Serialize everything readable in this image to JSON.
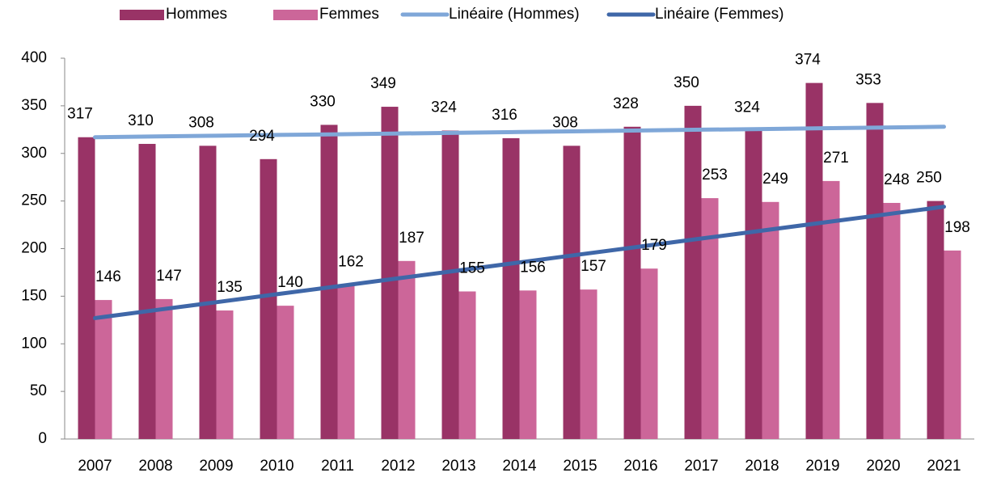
{
  "chart_data": {
    "type": "bar",
    "categories": [
      "2007",
      "2008",
      "2009",
      "2010",
      "2011",
      "2012",
      "2013",
      "2014",
      "2015",
      "2016",
      "2017",
      "2018",
      "2019",
      "2020",
      "2021"
    ],
    "series": [
      {
        "name": "Hommes",
        "type": "bar",
        "color": "#993366",
        "values": [
          317,
          310,
          308,
          294,
          330,
          349,
          324,
          316,
          308,
          328,
          350,
          324,
          374,
          353,
          250
        ]
      },
      {
        "name": "Femmes",
        "type": "bar",
        "color": "#cc6699",
        "values": [
          146,
          147,
          135,
          140,
          162,
          187,
          155,
          156,
          157,
          179,
          253,
          249,
          271,
          248,
          198
        ]
      },
      {
        "name": "Linéaire (Hommes)",
        "type": "line",
        "color": "#7fa7d8",
        "values": [
          317,
          317.8,
          318.6,
          319.4,
          320.1,
          320.9,
          321.7,
          322.5,
          323.3,
          324.1,
          324.9,
          325.6,
          326.4,
          327.2,
          328
        ]
      },
      {
        "name": "Linéaire (Femmes)",
        "type": "line",
        "color": "#3f67a8",
        "values": [
          127,
          135.4,
          143.7,
          152.1,
          160.4,
          168.8,
          177.1,
          185.5,
          193.9,
          202.2,
          210.6,
          218.9,
          227.3,
          235.6,
          244
        ]
      }
    ],
    "ylim": [
      0,
      400
    ],
    "yticks": [
      0,
      50,
      100,
      150,
      200,
      250,
      300,
      350,
      400
    ],
    "grid": false,
    "legend": "top"
  }
}
